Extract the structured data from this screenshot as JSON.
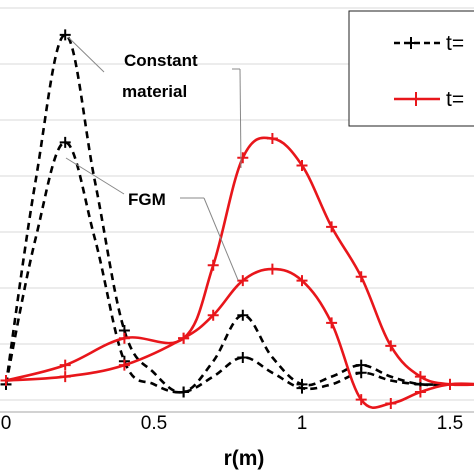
{
  "chart_data": {
    "type": "line",
    "title": "",
    "xlabel": "r(m)",
    "ylabel": "",
    "xlim": [
      0,
      1.6
    ],
    "ylim": [
      0,
      1.0
    ],
    "x_ticks": [
      "0",
      "0.5",
      "1",
      "1.5"
    ],
    "grid": "horizontal",
    "legend_position": "top-right",
    "legend_entries": [
      "t=",
      "t="
    ],
    "annotations": [
      "Constant material",
      "FGM"
    ],
    "annotation_lines": [
      "Constant",
      "material"
    ],
    "series": [
      {
        "group": "constant-material",
        "style": "dashed-black",
        "color": "#000000",
        "x": [
          0,
          0.1,
          0.2,
          0.3,
          0.4,
          0.5,
          0.6,
          0.7,
          0.8,
          0.9,
          1.0,
          1.1,
          1.2,
          1.3,
          1.4,
          1.5,
          1.6
        ],
        "y": [
          0.02,
          0.55,
          0.93,
          0.55,
          0.16,
          0.05,
          0.0,
          0.08,
          0.2,
          0.09,
          0.02,
          0.04,
          0.07,
          0.04,
          0.02,
          0.02,
          0.02
        ]
      },
      {
        "group": "fgm",
        "style": "dashed-black",
        "color": "#000000",
        "x": [
          0,
          0.1,
          0.2,
          0.3,
          0.4,
          0.5,
          0.6,
          0.7,
          0.8,
          0.9,
          1.0,
          1.1,
          1.2,
          1.3,
          1.4,
          1.5,
          1.6
        ],
        "y": [
          0.02,
          0.4,
          0.65,
          0.4,
          0.08,
          0.02,
          0.0,
          0.04,
          0.09,
          0.05,
          0.01,
          0.02,
          0.05,
          0.03,
          0.02,
          0.02,
          0.02
        ]
      },
      {
        "group": "constant-material",
        "style": "solid-red",
        "color": "#e8161b",
        "x": [
          0,
          0.2,
          0.4,
          0.6,
          0.7,
          0.8,
          0.9,
          1.0,
          1.1,
          1.2,
          1.3,
          1.4,
          1.5,
          1.6
        ],
        "y": [
          0.03,
          0.07,
          0.14,
          0.14,
          0.33,
          0.61,
          0.66,
          0.59,
          0.43,
          0.3,
          0.12,
          0.04,
          0.02,
          0.02
        ]
      },
      {
        "group": "fgm",
        "style": "solid-red",
        "color": "#e8161b",
        "x": [
          0,
          0.2,
          0.4,
          0.6,
          0.7,
          0.8,
          0.9,
          1.0,
          1.1,
          1.2,
          1.3,
          1.4,
          1.5,
          1.6
        ],
        "y": [
          0.03,
          0.04,
          0.07,
          0.14,
          0.2,
          0.29,
          0.32,
          0.29,
          0.18,
          -0.02,
          -0.03,
          0.0,
          0.02,
          0.02
        ]
      }
    ]
  }
}
